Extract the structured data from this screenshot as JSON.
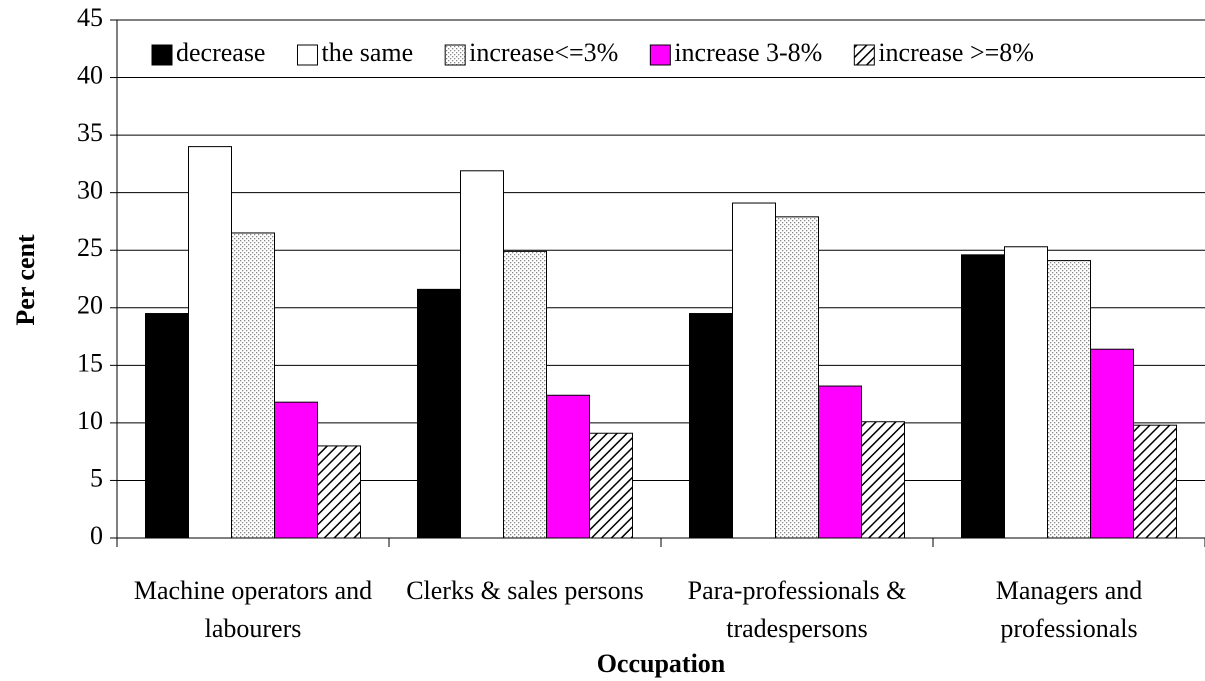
{
  "chart_data": {
    "type": "bar",
    "x_label": "Occupation",
    "y_label": "Per cent",
    "categories": [
      "Machine operators and labourers",
      "Clerks & sales persons",
      "Para-professionals & tradespersons",
      "Managers and professionals"
    ],
    "series": [
      {
        "name": "decrease",
        "color": "#000000",
        "pattern": "solid",
        "values": [
          19.5,
          21.6,
          19.5,
          24.6
        ]
      },
      {
        "name": "the same",
        "color": "#ffffff",
        "pattern": "solid",
        "values": [
          34,
          31.9,
          29.1,
          25.3
        ]
      },
      {
        "name": "increase<=3%",
        "color": "#ffffff",
        "pattern": "dots",
        "values": [
          26.5,
          24.9,
          27.9,
          24.1
        ]
      },
      {
        "name": "increase 3-8%",
        "color": "#ff00ff",
        "pattern": "solid",
        "values": [
          11.8,
          12.4,
          13.2,
          16.4
        ]
      },
      {
        "name": "increase >=8%",
        "color": "#ffffff",
        "pattern": "hatch",
        "values": [
          8,
          9.1,
          10.1,
          9.8
        ]
      }
    ],
    "ylim": [
      0,
      45
    ],
    "yticks": [
      0,
      5,
      10,
      15,
      20,
      25,
      30,
      35,
      40,
      45
    ],
    "grid": true,
    "legend": "top"
  }
}
